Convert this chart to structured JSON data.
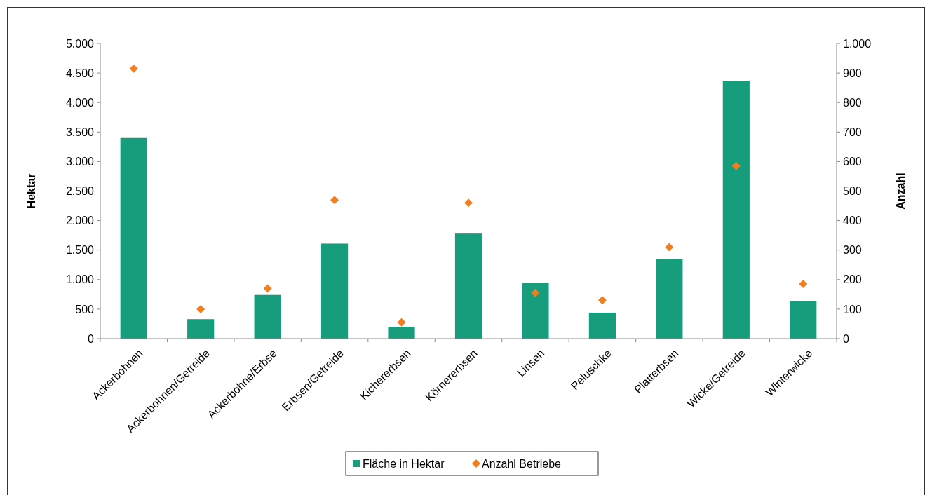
{
  "chart_data": {
    "type": "bar",
    "ylabel": "Hektar",
    "y2label": "Anzahl",
    "categories": [
      "Ackerbohnen",
      "Ackerbohnen/Getreide",
      "Ackerbohne/Erbse",
      "Erbsen/Getreide",
      "Kichererbsen",
      "Körnererbsen",
      "Linsen",
      "Peluschke",
      "Platterbsen",
      "Wicke/Getreide",
      "Winterwicke"
    ],
    "series": [
      {
        "name": "Fläche in Hektar",
        "color": "#169e7c",
        "values": [
          3400,
          330,
          740,
          1610,
          200,
          1780,
          950,
          440,
          1350,
          4370,
          630
        ]
      },
      {
        "name": "Anzahl Betriebe",
        "type": "scatter",
        "axis": "y2",
        "color": "#f07f22",
        "marker": "diamond",
        "values": [
          915,
          100,
          170,
          470,
          55,
          460,
          155,
          130,
          310,
          585,
          185
        ]
      }
    ],
    "ylim": [
      0,
      5000
    ],
    "yticks": [
      0,
      500,
      {
        "value": 1000,
        "label": "1.000"
      },
      {
        "value": 1500,
        "label": "1.500"
      },
      {
        "value": 2000,
        "label": "2.000"
      },
      {
        "value": 2500,
        "label": "2.500"
      },
      {
        "value": 3000,
        "label": "3.000"
      },
      {
        "value": 3500,
        "label": "3.500"
      },
      {
        "value": 4000,
        "label": "4.000"
      },
      {
        "value": 4500,
        "label": "4.500"
      },
      {
        "value": 5000,
        "label": "5.000"
      }
    ],
    "y2lim": [
      0,
      1000
    ],
    "y2ticks": [
      0,
      100,
      200,
      300,
      400,
      500,
      600,
      700,
      800,
      900,
      {
        "value": 1000,
        "label": "1.000"
      }
    ],
    "grid": false,
    "legend": "bottom"
  }
}
